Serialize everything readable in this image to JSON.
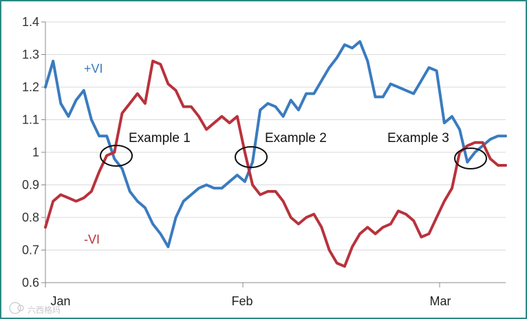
{
  "chart_data": {
    "type": "line",
    "title": "",
    "xlabel": "",
    "ylabel": "",
    "ylim": [
      0.6,
      1.4
    ],
    "yticks": [
      "0.6",
      "0.7",
      "0.8",
      "0.9",
      "1",
      "1.1",
      "1.2",
      "1.3",
      "1.4"
    ],
    "xticks": [
      "Jan",
      "Feb",
      "Mar"
    ],
    "grid": "horizontal",
    "legend": "inline labels",
    "x_start": "Jan",
    "series": [
      {
        "name": "+VI",
        "color": "#3a7bbf",
        "values": [
          1.2,
          1.28,
          1.15,
          1.11,
          1.16,
          1.19,
          1.1,
          1.05,
          1.05,
          0.98,
          0.95,
          0.88,
          0.85,
          0.83,
          0.78,
          0.75,
          0.71,
          0.8,
          0.85,
          0.87,
          0.89,
          0.9,
          0.89,
          0.89,
          0.91,
          0.93,
          0.91,
          0.97,
          1.13,
          1.15,
          1.14,
          1.11,
          1.16,
          1.13,
          1.18,
          1.18,
          1.22,
          1.26,
          1.29,
          1.33,
          1.32,
          1.34,
          1.28,
          1.17,
          1.17,
          1.21,
          1.2,
          1.19,
          1.18,
          1.22,
          1.26,
          1.25,
          1.09,
          1.11,
          1.07,
          0.97,
          1.0,
          1.02,
          1.04,
          1.05,
          1.05
        ]
      },
      {
        "name": "-VI",
        "color": "#b8323c",
        "values": [
          0.77,
          0.85,
          0.87,
          0.86,
          0.85,
          0.86,
          0.88,
          0.94,
          0.99,
          1.0,
          1.12,
          1.15,
          1.18,
          1.15,
          1.28,
          1.27,
          1.21,
          1.19,
          1.14,
          1.14,
          1.11,
          1.07,
          1.09,
          1.11,
          1.09,
          1.11,
          1.0,
          0.9,
          0.87,
          0.88,
          0.88,
          0.85,
          0.8,
          0.78,
          0.8,
          0.81,
          0.77,
          0.7,
          0.66,
          0.65,
          0.71,
          0.75,
          0.77,
          0.75,
          0.77,
          0.78,
          0.82,
          0.81,
          0.79,
          0.74,
          0.75,
          0.8,
          0.85,
          0.89,
          1.0,
          1.02,
          1.03,
          1.03,
          0.98,
          0.96,
          0.96
        ]
      }
    ],
    "annotations": [
      "Example 1",
      "Example 2",
      "Example 3"
    ]
  },
  "watermark": "六西格玛"
}
